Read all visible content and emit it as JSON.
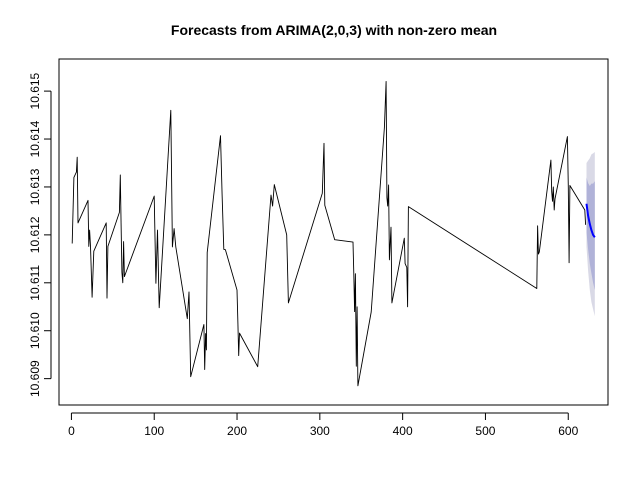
{
  "chart_data": {
    "type": "line",
    "title": "Forecasts from ARIMA(2,0,3) with non-zero mean",
    "xlabel": "",
    "ylabel": "",
    "xlim": [
      -15,
      648
    ],
    "ylim": [
      10.60845,
      10.61567
    ],
    "x_ticks": [
      0,
      100,
      200,
      300,
      400,
      500,
      600
    ],
    "y_ticks": [
      10.609,
      10.61,
      10.611,
      10.612,
      10.613,
      10.614,
      10.615
    ],
    "x_tick_labels": [
      "0",
      "100",
      "200",
      "300",
      "400",
      "500",
      "600"
    ],
    "y_tick_labels": [
      "10.609",
      "10.610",
      "10.611",
      "10.612",
      "10.613",
      "10.614",
      "10.615"
    ],
    "grid": false,
    "legend": "none",
    "series": [
      {
        "role": "observed",
        "color": "#000000",
        "points": [
          [
            1,
            10.61182
          ],
          [
            3,
            10.6132
          ],
          [
            6,
            10.61331
          ],
          [
            7,
            10.61362
          ],
          [
            8,
            10.61225
          ],
          [
            20,
            10.61272
          ],
          [
            21,
            10.61176
          ],
          [
            22,
            10.6121
          ],
          [
            23,
            10.61176
          ],
          [
            25,
            10.6107
          ],
          [
            27,
            10.61166
          ],
          [
            42,
            10.61225
          ],
          [
            43,
            10.61068
          ],
          [
            44,
            10.61176
          ],
          [
            58,
            10.61247
          ],
          [
            59,
            10.61325
          ],
          [
            60,
            10.61221
          ],
          [
            61,
            10.61122
          ],
          [
            62,
            10.611
          ],
          [
            63,
            10.61186
          ],
          [
            64,
            10.61113
          ],
          [
            100,
            10.61281
          ],
          [
            102,
            10.61099
          ],
          [
            104,
            10.6121
          ],
          [
            106,
            10.61048
          ],
          [
            120,
            10.6146
          ],
          [
            122,
            10.61175
          ],
          [
            124,
            10.61213
          ],
          [
            126,
            10.61175
          ],
          [
            140,
            10.61025
          ],
          [
            142,
            10.61081
          ],
          [
            144,
            10.60904
          ],
          [
            160,
            10.61013
          ],
          [
            161,
            10.60919
          ],
          [
            162,
            10.60994
          ],
          [
            163,
            10.6096
          ],
          [
            164,
            10.61163
          ],
          [
            180,
            10.61407
          ],
          [
            182,
            10.61284
          ],
          [
            184,
            10.6117
          ],
          [
            186,
            10.61169
          ],
          [
            200,
            10.61085
          ],
          [
            201,
            10.61016
          ],
          [
            202,
            10.60948
          ],
          [
            203,
            10.60995
          ],
          [
            225,
            10.60925
          ],
          [
            241,
            10.61283
          ],
          [
            243,
            10.6126
          ],
          [
            245,
            10.61305
          ],
          [
            260,
            10.612
          ],
          [
            262,
            10.61058
          ],
          [
            303,
            10.61287
          ],
          [
            305,
            10.61391
          ],
          [
            306,
            10.61262
          ],
          [
            318,
            10.6119
          ],
          [
            340,
            10.61185
          ],
          [
            341,
            10.61119
          ],
          [
            342,
            10.6104
          ],
          [
            343,
            10.61119
          ],
          [
            344,
            10.60926
          ],
          [
            345,
            10.6105
          ],
          [
            346,
            10.60885
          ],
          [
            362,
            10.61039
          ],
          [
            378,
            10.61424
          ],
          [
            380,
            10.6152
          ],
          [
            381,
            10.61278
          ],
          [
            382,
            10.6126
          ],
          [
            383,
            10.61304
          ],
          [
            384,
            10.61148
          ],
          [
            386,
            10.61216
          ],
          [
            387,
            10.61058
          ],
          [
            402,
            10.61193
          ],
          [
            403,
            10.6114
          ],
          [
            405,
            10.61132
          ],
          [
            406,
            10.6105
          ],
          [
            407,
            10.61259
          ],
          [
            562,
            10.61088
          ],
          [
            563,
            10.61219
          ],
          [
            564,
            10.6116
          ],
          [
            565,
            10.61164
          ],
          [
            579,
            10.61356
          ],
          [
            580,
            10.6129
          ],
          [
            581,
            10.6127
          ],
          [
            582,
            10.613
          ],
          [
            583,
            10.61252
          ],
          [
            584,
            10.61275
          ],
          [
            599,
            10.61405
          ],
          [
            600,
            10.613
          ],
          [
            601,
            10.61142
          ],
          [
            602,
            10.61303
          ],
          [
            620,
            10.61252
          ],
          [
            621,
            10.61221
          ]
        ]
      },
      {
        "role": "forecast",
        "color": "#0000FF",
        "points": [
          [
            622,
            10.61265
          ],
          [
            624,
            10.6124
          ],
          [
            626,
            10.61223
          ],
          [
            628,
            10.6121
          ],
          [
            630,
            10.612
          ],
          [
            632,
            10.61195
          ]
        ]
      }
    ],
    "prediction_bands": [
      {
        "level": 80,
        "color": "#b0b2d8",
        "upper": [
          [
            622,
            10.6132
          ],
          [
            624,
            10.61308
          ],
          [
            626,
            10.61302
          ],
          [
            628,
            10.61307
          ],
          [
            630,
            10.61307
          ],
          [
            632,
            10.61312
          ]
        ],
        "lower": [
          [
            622,
            10.61205
          ],
          [
            624,
            10.6117
          ],
          [
            626,
            10.6114
          ],
          [
            628,
            10.6112
          ],
          [
            630,
            10.611
          ],
          [
            632,
            10.61085
          ]
        ]
      },
      {
        "level": 95,
        "color": "#d9d9e6",
        "upper": [
          [
            622,
            10.6135
          ],
          [
            624,
            10.61355
          ],
          [
            626,
            10.6136
          ],
          [
            628,
            10.61368
          ],
          [
            630,
            10.6137
          ],
          [
            632,
            10.61373
          ]
        ],
        "lower": [
          [
            622,
            10.61175
          ],
          [
            624,
            10.61125
          ],
          [
            626,
            10.61085
          ],
          [
            628,
            10.6106
          ],
          [
            630,
            10.61045
          ],
          [
            632,
            10.6103
          ]
        ]
      }
    ]
  }
}
